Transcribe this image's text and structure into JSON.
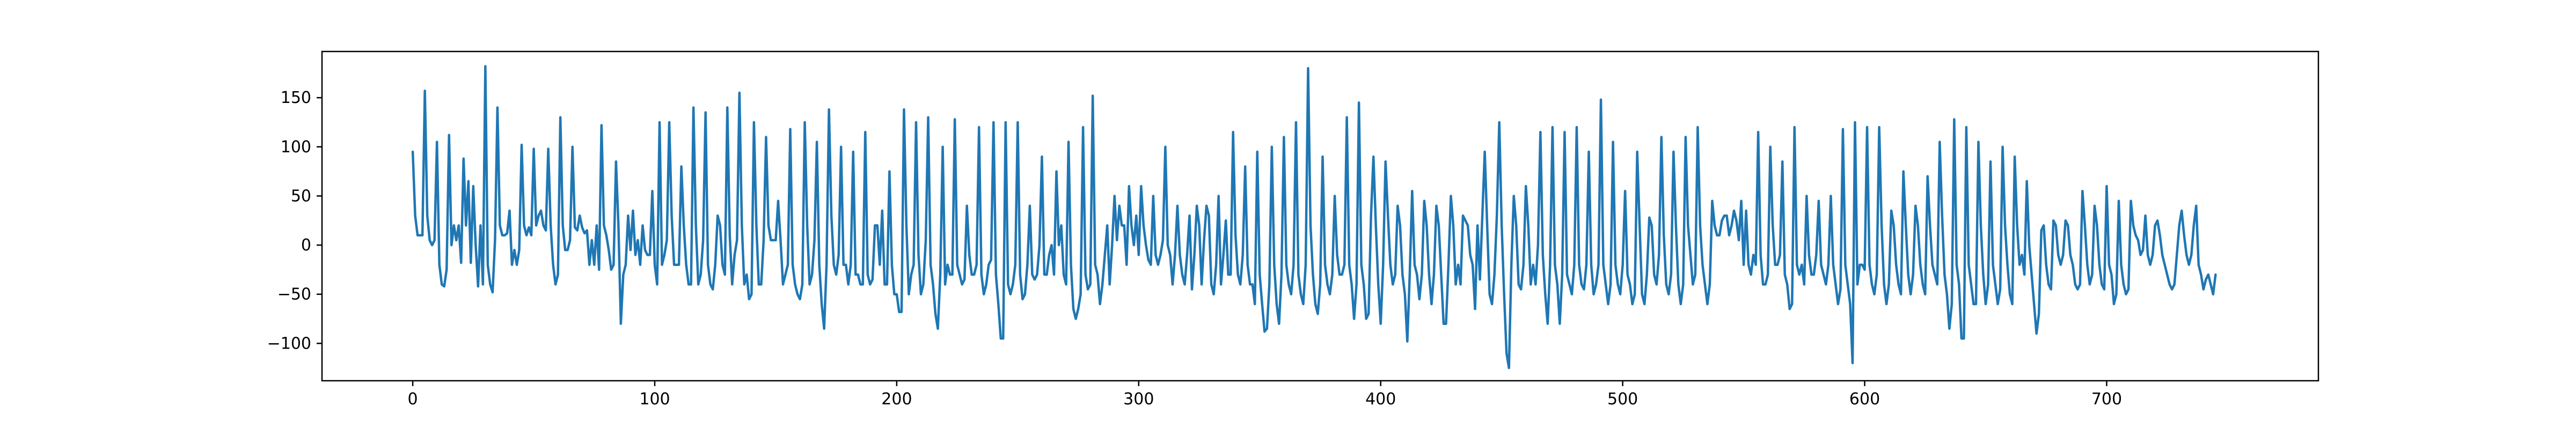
{
  "chart_data": {
    "type": "line",
    "title": "",
    "xlabel": "",
    "ylabel": "",
    "xlim": [
      -37.5,
      787.5
    ],
    "ylim": [
      -138,
      197
    ],
    "x_ticks": [
      0,
      100,
      200,
      300,
      400,
      500,
      600,
      700
    ],
    "y_ticks": [
      -100,
      -50,
      0,
      50,
      100,
      150
    ],
    "x_tick_labels": [
      "0",
      "100",
      "200",
      "300",
      "400",
      "500",
      "600",
      "700"
    ],
    "y_tick_labels": [
      "−100",
      "−50",
      "0",
      "50",
      "100",
      "150"
    ],
    "grid": false,
    "legend": "none",
    "series": [
      {
        "color": "#1f77b4",
        "x_start": 0,
        "x_step": 1,
        "values": [
          95,
          30,
          10,
          10,
          10,
          157,
          30,
          5,
          0,
          5,
          105,
          -20,
          -40,
          -42,
          -25,
          112,
          0,
          20,
          5,
          20,
          -18,
          88,
          20,
          65,
          -18,
          60,
          0,
          -42,
          20,
          -40,
          182,
          -20,
          -40,
          -48,
          5,
          140,
          20,
          10,
          10,
          12,
          35,
          -20,
          -5,
          -20,
          -5,
          102,
          20,
          10,
          18,
          10,
          98,
          20,
          30,
          35,
          20,
          15,
          98,
          20,
          -20,
          -40,
          -30,
          130,
          20,
          -5,
          -5,
          5,
          100,
          18,
          15,
          30,
          18,
          12,
          15,
          -20,
          5,
          -20,
          20,
          -25,
          122,
          20,
          10,
          -5,
          -25,
          -20,
          85,
          20,
          -80,
          -30,
          -20,
          30,
          -5,
          35,
          -10,
          5,
          -20,
          20,
          -5,
          -10,
          -10,
          55,
          -20,
          -40,
          125,
          -20,
          -10,
          5,
          125,
          30,
          -20,
          -20,
          -20,
          80,
          20,
          -20,
          -40,
          -40,
          140,
          20,
          -40,
          -30,
          5,
          135,
          -20,
          -40,
          -45,
          -20,
          30,
          20,
          -20,
          -30,
          140,
          10,
          -40,
          -10,
          5,
          155,
          20,
          -40,
          -30,
          -55,
          -50,
          125,
          20,
          -40,
          -40,
          5,
          110,
          20,
          5,
          5,
          5,
          45,
          5,
          -40,
          -30,
          -20,
          118,
          -20,
          -40,
          -50,
          -55,
          -40,
          125,
          20,
          -40,
          -30,
          5,
          105,
          -20,
          -60,
          -85,
          -20,
          138,
          30,
          -20,
          -30,
          -10,
          100,
          -20,
          -20,
          -40,
          -20,
          95,
          -30,
          -30,
          -40,
          -40,
          115,
          -30,
          -40,
          -35,
          20,
          20,
          -20,
          35,
          -40,
          -40,
          75,
          -20,
          -50,
          -50,
          -68,
          -68,
          138,
          20,
          -50,
          -30,
          -20,
          125,
          -10,
          -50,
          -40,
          5,
          130,
          -20,
          -40,
          -70,
          -85,
          -30,
          100,
          -40,
          -20,
          -30,
          -30,
          128,
          -20,
          -30,
          -40,
          -35,
          40,
          -10,
          -30,
          -30,
          -20,
          120,
          -30,
          -50,
          -40,
          -20,
          -15,
          125,
          -30,
          -60,
          -95,
          -95,
          125,
          -40,
          -50,
          -40,
          -20,
          125,
          -30,
          -55,
          -50,
          -20,
          40,
          -30,
          -35,
          -30,
          0,
          90,
          -30,
          -30,
          -10,
          0,
          -30,
          75,
          0,
          20,
          -30,
          -40,
          105,
          -20,
          -65,
          -75,
          -65,
          -50,
          120,
          -30,
          -45,
          -40,
          152,
          -20,
          -30,
          -60,
          -40,
          -10,
          20,
          -40,
          0,
          50,
          5,
          40,
          20,
          20,
          -20,
          60,
          20,
          0,
          30,
          -10,
          60,
          20,
          0,
          -15,
          -20,
          50,
          -10,
          -20,
          -10,
          5,
          100,
          0,
          -10,
          -40,
          -10,
          40,
          -10,
          -30,
          -40,
          -10,
          30,
          -45,
          -10,
          40,
          20,
          -40,
          5,
          40,
          30,
          -40,
          -50,
          -20,
          50,
          -40,
          -10,
          25,
          -30,
          -30,
          115,
          10,
          -30,
          -40,
          -10,
          80,
          -20,
          -40,
          -40,
          -60,
          95,
          -30,
          -60,
          -88,
          -85,
          -40,
          100,
          -20,
          -60,
          -80,
          -30,
          110,
          -20,
          -40,
          -50,
          -20,
          125,
          -30,
          -50,
          -60,
          -20,
          180,
          20,
          -30,
          -60,
          -70,
          -40,
          90,
          -20,
          -40,
          -50,
          -30,
          50,
          -10,
          -30,
          -30,
          -20,
          130,
          -20,
          -40,
          -75,
          -40,
          145,
          -20,
          -40,
          -75,
          -70,
          30,
          90,
          20,
          -40,
          -80,
          -20,
          85,
          30,
          -20,
          -40,
          -30,
          40,
          20,
          -30,
          -50,
          -98,
          -30,
          55,
          -20,
          -30,
          -55,
          -30,
          45,
          20,
          -30,
          -60,
          -30,
          40,
          20,
          -30,
          -80,
          -80,
          -20,
          50,
          20,
          -40,
          -20,
          -40,
          30,
          25,
          20,
          -10,
          -20,
          -65,
          20,
          -35,
          30,
          95,
          20,
          -50,
          -60,
          -30,
          30,
          125,
          20,
          -50,
          -110,
          -125,
          -20,
          50,
          20,
          -40,
          -45,
          -20,
          60,
          20,
          -40,
          -20,
          -40,
          0,
          115,
          -10,
          -50,
          -80,
          -20,
          120,
          -20,
          -40,
          -80,
          -30,
          115,
          -30,
          -40,
          -50,
          -20,
          120,
          -20,
          -40,
          -45,
          -20,
          95,
          -20,
          -50,
          -40,
          -20,
          148,
          -20,
          -40,
          -60,
          -40,
          105,
          -20,
          -40,
          -50,
          -20,
          55,
          -30,
          -40,
          -60,
          -50,
          95,
          20,
          -50,
          -60,
          -30,
          28,
          20,
          -30,
          -40,
          -10,
          110,
          10,
          -40,
          -50,
          -30,
          95,
          20,
          -40,
          -60,
          -40,
          110,
          20,
          -10,
          -40,
          -30,
          120,
          20,
          -20,
          -40,
          -60,
          -40,
          45,
          20,
          10,
          10,
          25,
          30,
          30,
          10,
          20,
          35,
          25,
          5,
          45,
          -20,
          35,
          -20,
          -30,
          -10,
          -20,
          115,
          -10,
          -40,
          -40,
          -30,
          100,
          20,
          -20,
          -20,
          -10,
          85,
          -30,
          -40,
          -65,
          -60,
          120,
          -20,
          -30,
          -20,
          -40,
          50,
          -10,
          -30,
          -30,
          -10,
          45,
          -20,
          -30,
          -40,
          -20,
          50,
          -20,
          -40,
          -60,
          -45,
          118,
          -20,
          -40,
          -60,
          -120,
          125,
          -40,
          -20,
          -20,
          -25,
          120,
          -20,
          -40,
          -50,
          -30,
          120,
          20,
          -40,
          -60,
          -40,
          35,
          20,
          -20,
          -40,
          -50,
          75,
          20,
          -30,
          -50,
          -30,
          40,
          20,
          -20,
          -40,
          -50,
          70,
          20,
          -20,
          -30,
          -40,
          105,
          30,
          -30,
          -50,
          -85,
          -60,
          128,
          -20,
          -40,
          -95,
          -95,
          120,
          -20,
          -40,
          -60,
          -60,
          105,
          20,
          -30,
          -60,
          -40,
          85,
          -20,
          -40,
          -60,
          -45,
          100,
          20,
          -20,
          -50,
          -60,
          90,
          20,
          -20,
          -10,
          -30,
          65,
          0,
          -30,
          -60,
          -90,
          -70,
          15,
          20,
          -20,
          -40,
          -45,
          25,
          20,
          -10,
          -20,
          -10,
          25,
          20,
          -10,
          -20,
          -40,
          -45,
          -40,
          55,
          20,
          -20,
          -40,
          -30,
          40,
          20,
          -20,
          -40,
          -45,
          60,
          -20,
          -30,
          -60,
          -50,
          45,
          -20,
          -40,
          -50,
          -45,
          45,
          20,
          10,
          5,
          -10,
          -5,
          30,
          -10,
          -20,
          -10,
          20,
          25,
          10,
          -10,
          -20,
          -30,
          -40,
          -45,
          -40,
          -10,
          20,
          35,
          10,
          -10,
          -20,
          -10,
          20,
          40,
          -20,
          -30,
          -45,
          -35,
          -30,
          -40,
          -50,
          -30
        ]
      }
    ]
  }
}
